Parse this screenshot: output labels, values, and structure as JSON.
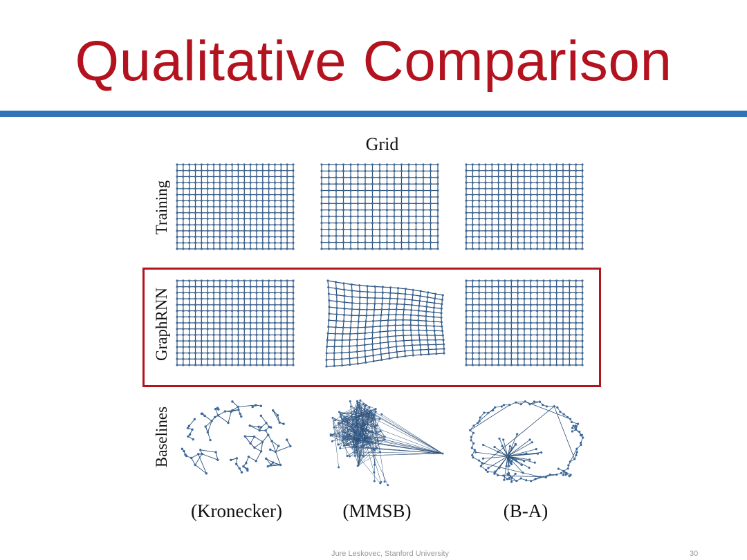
{
  "slide": {
    "title": "Qualitative Comparison",
    "footer": "Jure Leskovec, Stanford University",
    "page_number": "30"
  },
  "figure": {
    "panel_title": "Grid",
    "rows": [
      "Training",
      "GraphRNN",
      "Baselines"
    ],
    "columns": [
      "(Kronecker)",
      "(MMSB)",
      "(B-A)"
    ]
  },
  "colors": {
    "title": "#b3121f",
    "rule": "#2f73b8",
    "highlight": "#b3121f",
    "edges": "#2c4f78",
    "nodes": "#3b6a9e"
  }
}
